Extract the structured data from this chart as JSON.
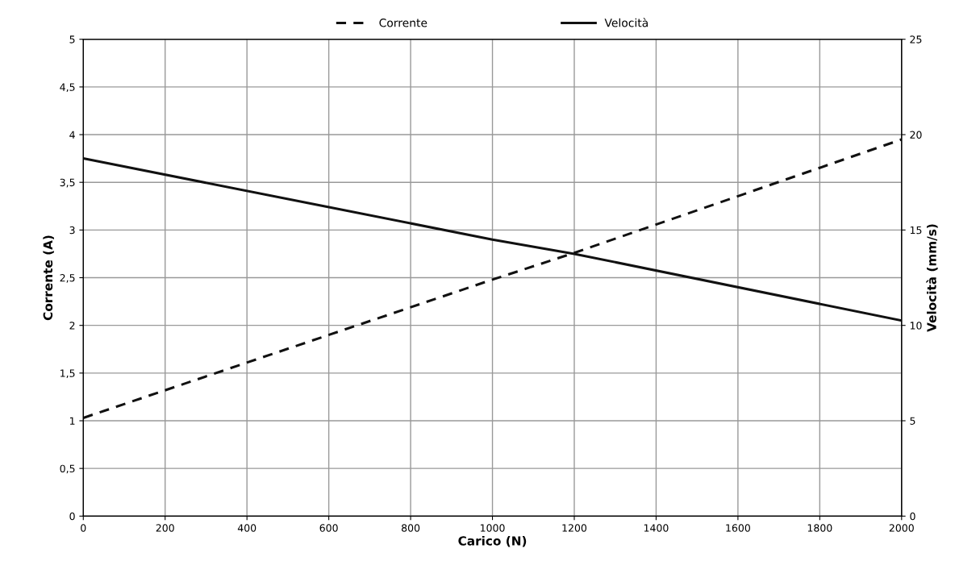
{
  "chart_data": {
    "type": "line",
    "xlabel": "Carico (N)",
    "ylabel": "Corrente (A)",
    "y2label": "Velocità (mm/s)",
    "x": [
      0,
      1000,
      1200,
      2000
    ],
    "series": [
      {
        "name": "Corrente",
        "color": "#111111",
        "line_style": "dashed",
        "values": [
          1.03,
          2.48,
          2.76,
          3.95
        ]
      },
      {
        "name": "Velocità",
        "color": "#111111",
        "line_style": "solid",
        "axis": "y2",
        "values": [
          18.75,
          14.5,
          13.75,
          10.25
        ]
      }
    ],
    "xlim": [
      0,
      2000
    ],
    "xticks": [
      0,
      200,
      400,
      600,
      800,
      1000,
      1200,
      1400,
      1600,
      1800,
      2000
    ],
    "ylim": [
      0,
      5
    ],
    "yticks": [
      0,
      {
        "value": 0.5,
        "label": "0,5"
      },
      1,
      {
        "value": 1.5,
        "label": "1,5"
      },
      2,
      {
        "value": 2.5,
        "label": "2,5"
      },
      3,
      {
        "value": 3.5,
        "label": "3,5"
      },
      4,
      {
        "value": 4.5,
        "label": "4,5"
      },
      5
    ],
    "y2lim": [
      0,
      25
    ],
    "y2ticks": [
      0,
      5,
      10,
      15,
      20,
      25
    ],
    "grid": true,
    "legend": "top",
    "marker": "none"
  }
}
